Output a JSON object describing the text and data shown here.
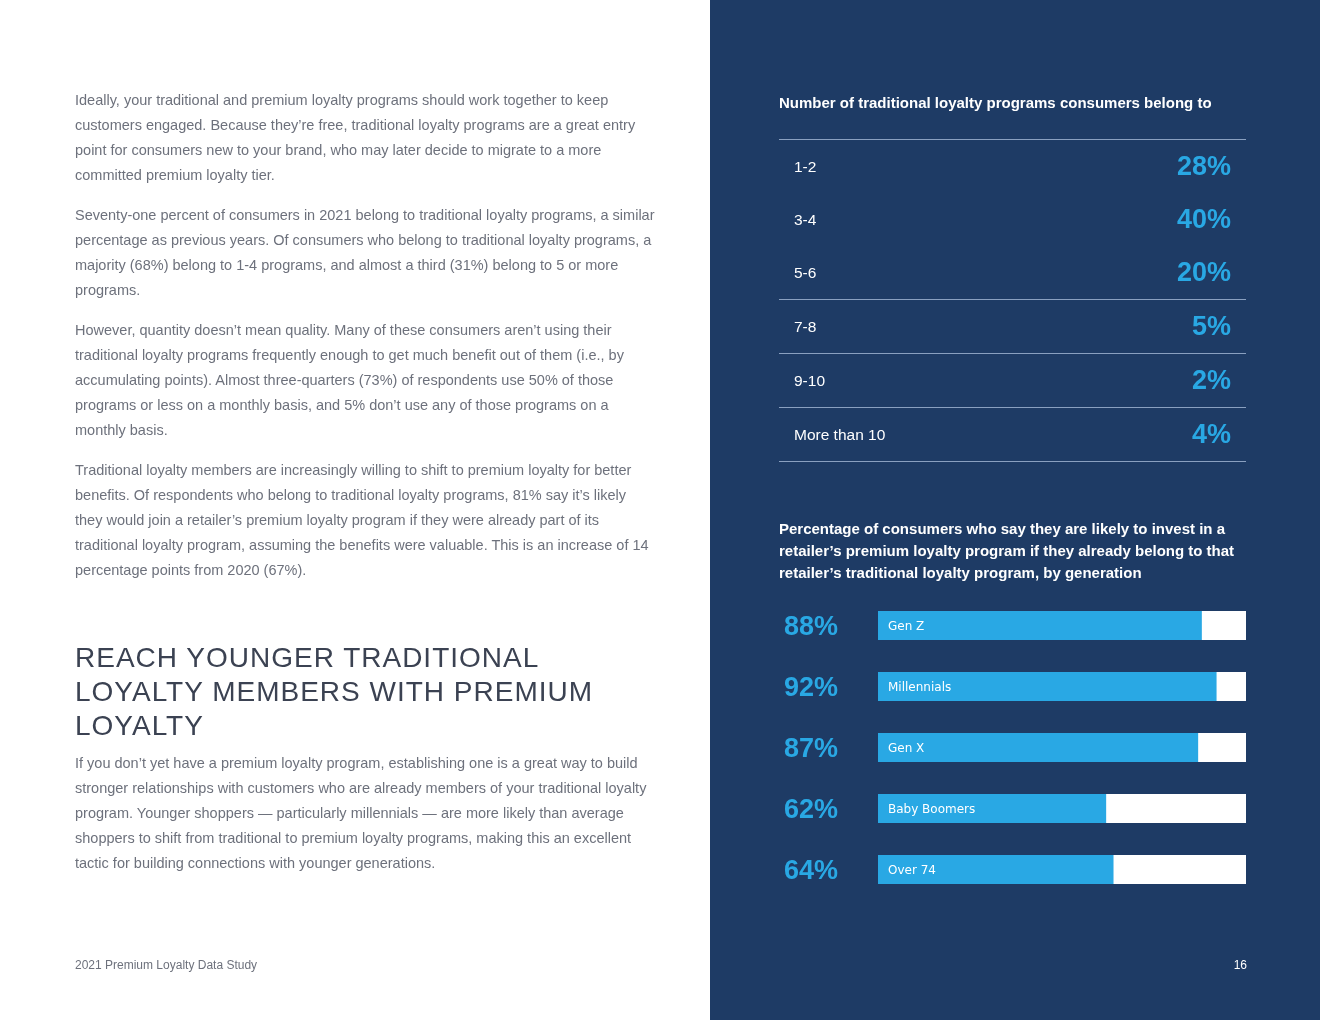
{
  "chart_data": [
    {
      "type": "other",
      "title": "REACH YOUNGER TRADITIONAL LOYALTY MEMBERS WITH PREMIUM LOYALTY",
      "annotations": [
        "Ideally, your traditional and premium loyalty programs should work together to keep customers engaged. Because they’re free, traditional loyalty programs are a great entry point for consumers new to your brand, who may later decide to migrate to a more committed premium loyalty tier.",
        "Seventy-one percent of consumers in 2021 belong to traditional loyalty programs, a similar percentage as previous years. Of consumers who belong to traditional loyalty programs, a majority (68%) belong to 1-4 programs, and almost a third (31%) belong to 5 or more programs.",
        "However, quantity doesn’t mean quality. Many of these consumers aren’t using their traditional loyalty programs frequently enough to get much benefit out of them (i.e., by accumulating points). Almost three-quarters (73%) of respondents use 50% of those programs or less on a monthly basis, and 5% don’t use any of those programs on a monthly basis.",
        "Traditional loyalty members are increasingly willing to shift to premium loyalty for better benefits. Of respondents who belong to traditional loyalty programs, 81% say it’s likely they would join a retailer’s premium loyalty program if they were already part of its traditional loyalty program, assuming the benefits were valuable. This is an increase of 14 percentage points from 2020 (67%).",
        "If you don’t yet have a premium loyalty program, establishing one is a great way to build stronger relationships with customers who are already members of your traditional loyalty program. Younger shoppers — particularly millennials — are more likely than average shoppers to shift from traditional to premium loyalty programs, making this an excellent tactic for building connections with younger generations.",
        "2021 Premium Loyalty Data Study",
        "16"
      ]
    },
    {
      "type": "other",
      "title": "Number of traditional loyalty programs consumers belong to",
      "categories": [
        "1-2",
        "3-4",
        "5-6",
        "7-8",
        "9-10",
        "More than 10"
      ],
      "value_labels": [
        "28%",
        "40%",
        "20%",
        "5%",
        "2%",
        "4%"
      ]
    },
    {
      "type": "bar",
      "orientation": "horizontal",
      "title": "Percentage of consumers who say they are likely to invest in a retailer’s premium loyalty program if they already belong to that retailer’s traditional loyalty program, by generation",
      "categories": [
        "Gen Z",
        "Millennials",
        "Gen X",
        "Baby Boomers",
        "Over 74"
      ],
      "values": [
        88,
        92,
        87,
        62,
        64
      ],
      "color": "#29a8e4",
      "value_labels": [
        "88%",
        "92%",
        "87%",
        "62%",
        "64%"
      ],
      "xlim": [
        0,
        100
      ],
      "tick_labels": "y"
    }
  ]
}
